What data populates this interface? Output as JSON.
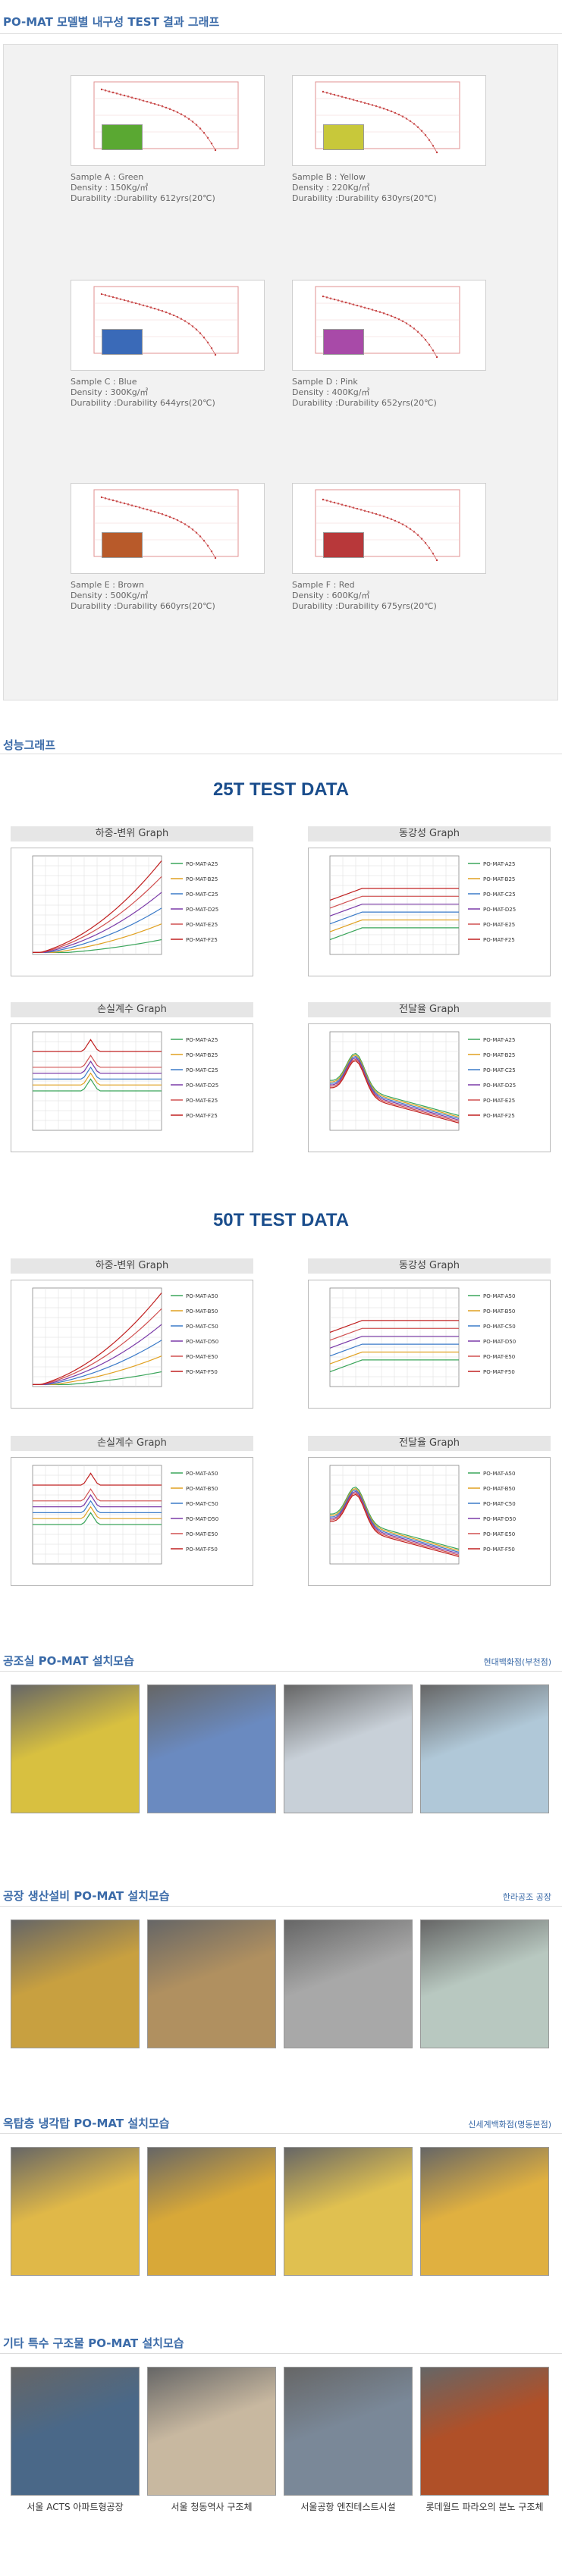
{
  "section1": {
    "title": "PO-MAT 모델별 내구성 TEST 결과 그래프"
  },
  "samples": [
    {
      "name": "Sample A : Green",
      "density": "Density : 150Kg/㎥",
      "durability": "Durability :Durability 612yrs(20℃)",
      "color": "#5aa832"
    },
    {
      "name": "Sample B : Yellow",
      "density": "Density : 220Kg/㎥",
      "durability": "Durability :Durability 630yrs(20℃)",
      "color": "#c8c83a"
    },
    {
      "name": "Sample C : Blue",
      "density": "Density : 300Kg/㎥",
      "durability": "Durability :Durability 644yrs(20℃)",
      "color": "#3a6ab8"
    },
    {
      "name": "Sample D : Pink",
      "density": "Density : 400Kg/㎥",
      "durability": "Durability :Durability 652yrs(20℃)",
      "color": "#a84aa8"
    },
    {
      "name": "Sample E : Brown",
      "density": "Density : 500Kg/㎥",
      "durability": "Durability :Durability 660yrs(20℃)",
      "color": "#b85a2a"
    },
    {
      "name": "Sample F : Red",
      "density": "Density : 600Kg/㎥",
      "durability": "Durability :Durability 675yrs(20℃)",
      "color": "#b8383a"
    }
  ],
  "section2": {
    "title": "성능그래프"
  },
  "test25": {
    "title": "25T TEST DATA",
    "g1": "하중-변위 Graph",
    "g2": "동강성 Graph",
    "g3": "손실계수 Graph",
    "g4": "전달율 Graph",
    "legend": [
      "PO-MAT-A25",
      "PO-MAT-B25",
      "PO-MAT-C25",
      "PO-MAT-D25",
      "PO-MAT-E25",
      "PO-MAT-F25"
    ]
  },
  "test50": {
    "title": "50T TEST DATA",
    "g1": "하중-변위 Graph",
    "g2": "동강성 Graph",
    "g3": "손실계수 Graph",
    "g4": "전달율 Graph",
    "legend": [
      "PO-MAT-A50",
      "PO-MAT-B50",
      "PO-MAT-C50",
      "PO-MAT-D50",
      "PO-MAT-E50",
      "PO-MAT-F50"
    ]
  },
  "series_colors": [
    "#3aa55a",
    "#e0a020",
    "#3a7ac8",
    "#7a3aa8",
    "#d05050",
    "#c02020"
  ],
  "install": [
    {
      "title": "공조실 PO-MAT 설치모습",
      "site": "현대백화점(부천점)",
      "captions": []
    },
    {
      "title": "공장 생산설비 PO-MAT 설치모습",
      "site": "한라공조 공장",
      "captions": []
    },
    {
      "title": "옥탑층 냉각탑 PO-MAT 설치모습",
      "site": "신세계백화점(명동본점)",
      "captions": []
    },
    {
      "title": "기타 특수 구조물 PO-MAT 설치모습",
      "site": "",
      "captions": [
        "서울 ACTS 아파트형공장",
        "서울 청동역사 구조체",
        "서울공항 엔진테스트시설",
        "롯데월드 파라오의 분노 구조체"
      ]
    }
  ]
}
